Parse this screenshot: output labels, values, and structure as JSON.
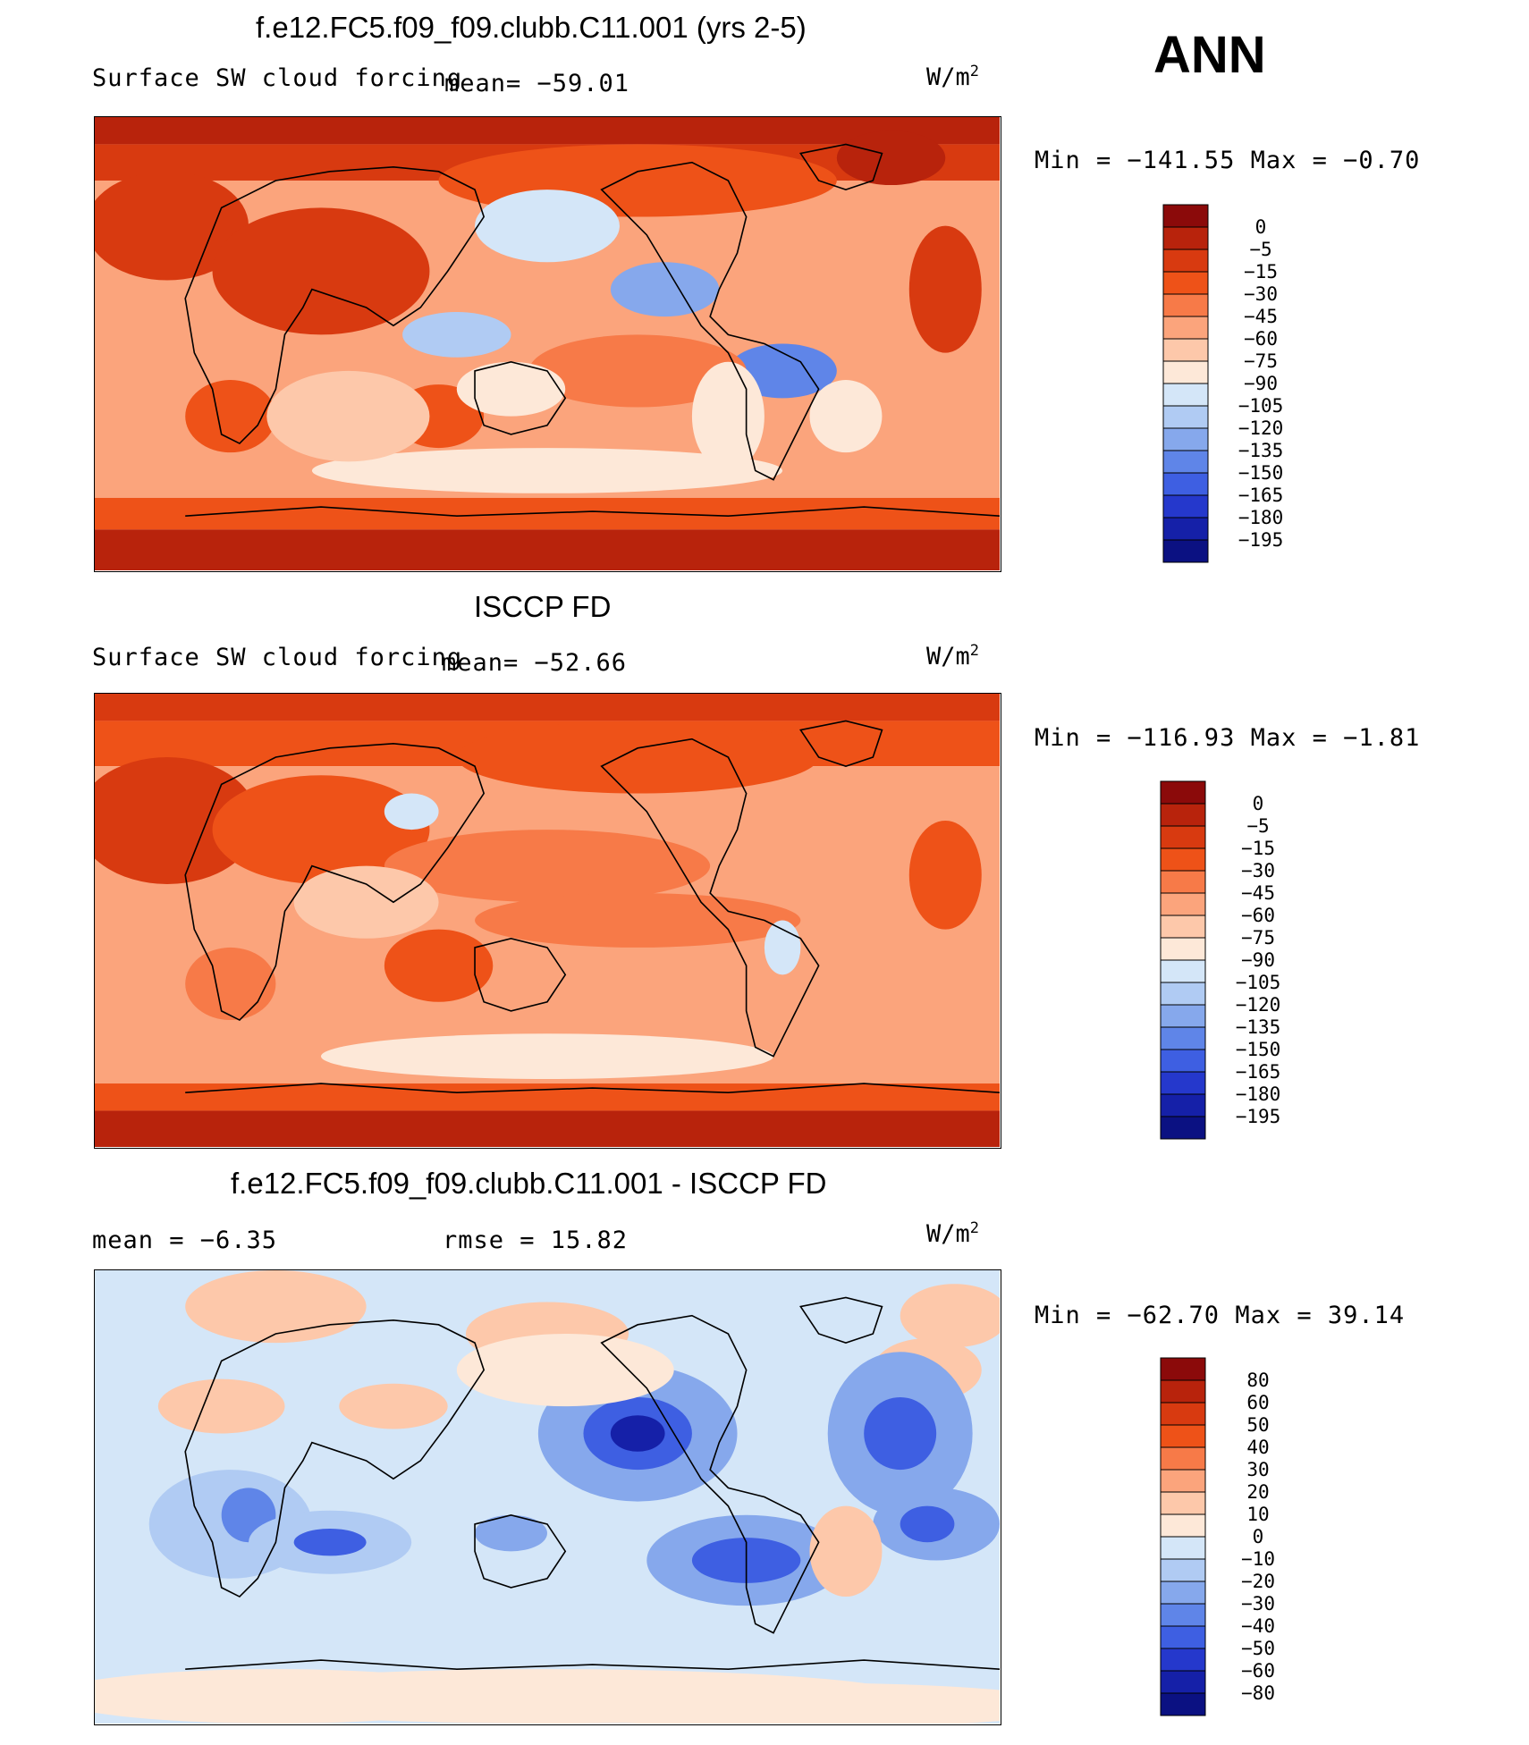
{
  "season": "ANN",
  "units_base": "W/m",
  "units_exp": "2",
  "panels": [
    {
      "title": "f.e12.FC5.f09_f09.clubb.C11.001 (yrs 2-5)",
      "subtitle": "Surface SW cloud forcing",
      "mean_text": "mean= −59.01",
      "minmax_text": "Min  =  −141.55  Max  =    −0.70",
      "colorbar": {
        "labels": [
          "0",
          "−5",
          "−15",
          "−30",
          "−45",
          "−60",
          "−75",
          "−90",
          "−105",
          "−120",
          "−135",
          "−150",
          "−165",
          "−180",
          "−195"
        ],
        "colors": [
          "#8b0a0a",
          "#b8230c",
          "#d83a10",
          "#ee5218",
          "#f77a48",
          "#fba47c",
          "#fdc8aa",
          "#fde8d8",
          "#d4e6f8",
          "#b0cbf3",
          "#86a8ec",
          "#5f85e8",
          "#3e5fe2",
          "#2538cc",
          "#1520a8",
          "#0b1182"
        ]
      }
    },
    {
      "title": "ISCCP FD",
      "subtitle": "Surface SW cloud forcing",
      "mean_text": "mean= −52.66",
      "minmax_text": "Min  =  −116.93  Max  =    −1.81",
      "colorbar": {
        "labels": [
          "0",
          "−5",
          "−15",
          "−30",
          "−45",
          "−60",
          "−75",
          "−90",
          "−105",
          "−120",
          "−135",
          "−150",
          "−165",
          "−180",
          "−195"
        ],
        "colors": [
          "#8b0a0a",
          "#b8230c",
          "#d83a10",
          "#ee5218",
          "#f77a48",
          "#fba47c",
          "#fdc8aa",
          "#fde8d8",
          "#d4e6f8",
          "#b0cbf3",
          "#86a8ec",
          "#5f85e8",
          "#3e5fe2",
          "#2538cc",
          "#1520a8",
          "#0b1182"
        ]
      }
    },
    {
      "title": "f.e12.FC5.f09_f09.clubb.C11.001 - ISCCP FD",
      "mean_text": "mean  =    −6.35",
      "rmse_text": "rmse  =    15.82",
      "minmax_text": "Min  =  −62.70  Max  =    39.14",
      "colorbar": {
        "labels": [
          "80",
          "60",
          "50",
          "40",
          "30",
          "20",
          "10",
          "0",
          "−10",
          "−20",
          "−30",
          "−40",
          "−50",
          "−60",
          "−80"
        ],
        "colors": [
          "#8b0a0a",
          "#b8230c",
          "#d83a10",
          "#ee5218",
          "#f77a48",
          "#fba47c",
          "#fdc8aa",
          "#fde8d8",
          "#d4e6f8",
          "#b0cbf3",
          "#86a8ec",
          "#5f85e8",
          "#3e5fe2",
          "#2538cc",
          "#1520a8",
          "#0b1182"
        ]
      }
    }
  ],
  "chart_data": [
    {
      "type": "heatmap",
      "title": "f.e12.FC5.f09_f09.clubb.C11.001 (yrs 2-5)",
      "variable": "Surface SW cloud forcing",
      "mean": -59.01,
      "min": -141.55,
      "max": -0.7,
      "contour_levels": [
        0,
        -5,
        -15,
        -30,
        -45,
        -60,
        -75,
        -90,
        -105,
        -120,
        -135,
        -150,
        -165,
        -180,
        -195
      ]
    },
    {
      "type": "heatmap",
      "title": "ISCCP FD",
      "variable": "Surface SW cloud forcing",
      "mean": -52.66,
      "min": -116.93,
      "max": -1.81,
      "contour_levels": [
        0,
        -5,
        -15,
        -30,
        -45,
        -60,
        -75,
        -90,
        -105,
        -120,
        -135,
        -150,
        -165,
        -180,
        -195
      ]
    },
    {
      "type": "heatmap",
      "title": "f.e12.FC5.f09_f09.clubb.C11.001 - ISCCP FD",
      "mean": -6.35,
      "rmse": 15.82,
      "min": -62.7,
      "max": 39.14,
      "contour_levels": [
        80,
        60,
        50,
        40,
        30,
        20,
        10,
        0,
        -10,
        -20,
        -30,
        -40,
        -50,
        -60,
        -80
      ]
    }
  ]
}
